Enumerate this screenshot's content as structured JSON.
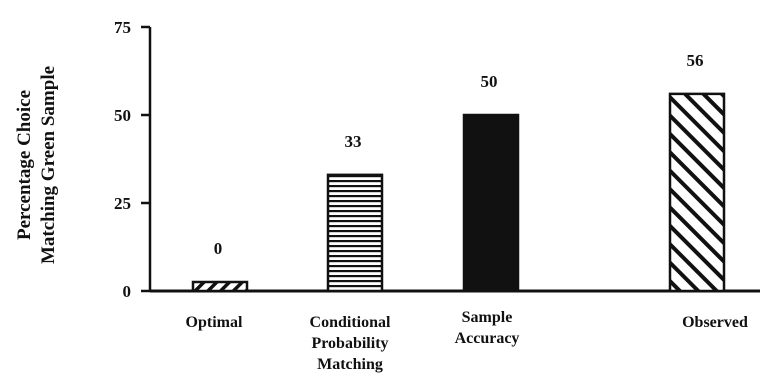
{
  "chart_data": {
    "type": "bar",
    "categories": [
      [
        "Optimal"
      ],
      [
        "Conditional",
        "Probability",
        "Matching"
      ],
      [
        "Sample",
        "Accuracy"
      ],
      [
        "Observed"
      ]
    ],
    "values": [
      0,
      33,
      50,
      56
    ],
    "data_labels": [
      "0",
      "33",
      "50",
      "56"
    ],
    "bar_patterns": [
      "diagonal-forward",
      "horizontal-lines",
      "solid",
      "diagonal-back"
    ],
    "ylabel": [
      "Percentage Choice",
      "Matching Green Sample"
    ],
    "yticks": [
      0,
      25,
      50,
      75
    ],
    "ytick_labels": [
      "0",
      "25",
      "50",
      "75"
    ],
    "ylim": [
      0,
      75
    ],
    "grid": false,
    "legend": "none",
    "colors": {
      "ink": "#111111",
      "background": "#ffffff"
    }
  }
}
